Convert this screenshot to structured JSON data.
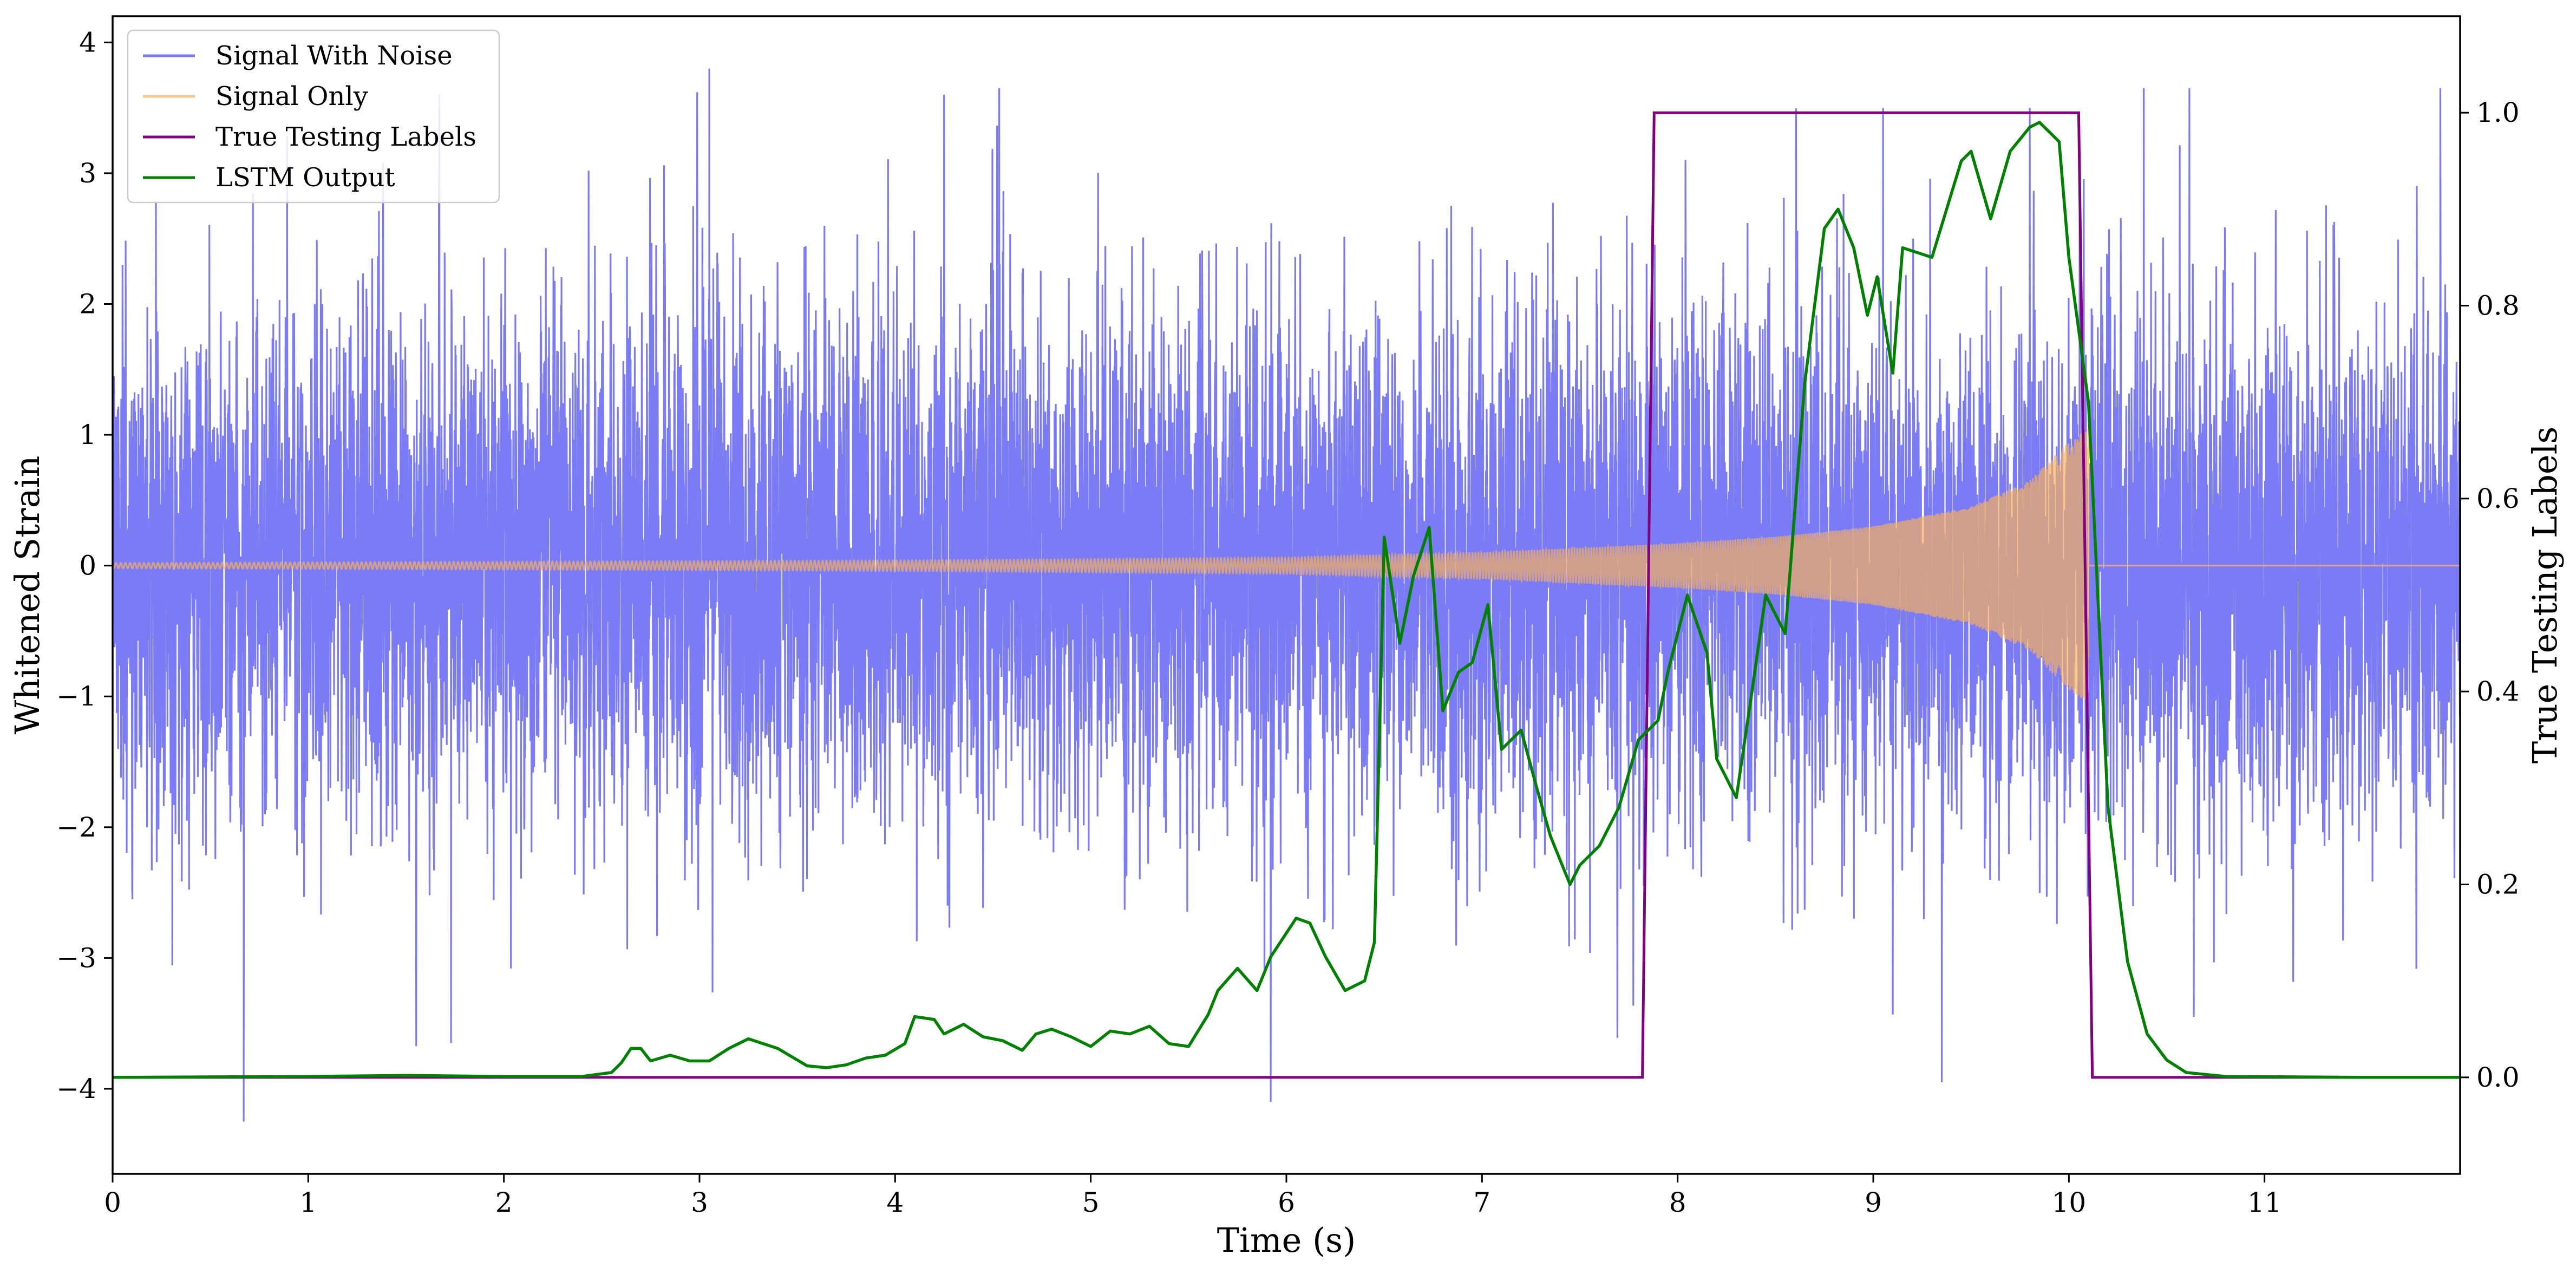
{
  "chart_data": {
    "type": "line",
    "title": "",
    "xlabel": "Time (s)",
    "ylabel": "Whitened Strain",
    "y2label": "True Testing Labels",
    "xlim": [
      0,
      12.0
    ],
    "ylim": [
      -4.65,
      4.2
    ],
    "y2lim": [
      -0.1,
      1.1
    ],
    "x_ticks": [
      0,
      1,
      2,
      3,
      4,
      5,
      6,
      7,
      8,
      9,
      10,
      11
    ],
    "y_ticks": [
      -4,
      -3,
      -2,
      -1,
      0,
      1,
      2,
      3,
      4
    ],
    "y2_ticks": [
      0.0,
      0.2,
      0.4,
      0.6,
      0.8,
      1.0
    ],
    "y_tick_labels": [
      "−4",
      "−3",
      "−2",
      "−1",
      "0",
      "1",
      "2",
      "3",
      "4"
    ],
    "y2_tick_labels": [
      "0.0",
      "0.2",
      "0.4",
      "0.6",
      "0.8",
      "1.0"
    ],
    "grid": false,
    "legend_position": "top-left",
    "legend": [
      "Signal With Noise",
      "Signal Only",
      "True Testing Labels",
      "LSTM Output"
    ],
    "colors": {
      "signal_with_noise": "#7b7bf5",
      "signal_only": "#f5b060",
      "true_labels": "#800080",
      "lstm_output": "#008000"
    },
    "series": [
      {
        "name": "Signal With Noise",
        "axis": "left",
        "description": "Gaussian-like noise of std about 1 spanning 0 to 12 s; peaks about 3.8 (x~3.05), 3.6 (x~4.25), 3.5 (x~9.05), 3.5 (x~9.8); troughs about -4.25 (x~0.67), -4.1 (x~5.92), -3.95 (x~9.35)",
        "stats": {
          "mean": 0,
          "std": 1.0,
          "max": 3.8,
          "min": -4.25
        }
      },
      {
        "name": "Signal Only",
        "axis": "left",
        "description": "Chirp oscillation around 0 whose amplitude grows from ~0.02 to ~1.05 and ends at 10.1 s; zero afterwards",
        "envelope": {
          "x": [
            0,
            2,
            4,
            6,
            7,
            8,
            8.5,
            9,
            9.5,
            9.8,
            10.0,
            10.1,
            12.0
          ],
          "amplitude": [
            0.02,
            0.03,
            0.04,
            0.06,
            0.1,
            0.17,
            0.22,
            0.3,
            0.45,
            0.65,
            0.95,
            1.05,
            0
          ]
        }
      },
      {
        "name": "True Testing Labels",
        "axis": "right",
        "x": [
          0,
          7.82,
          7.88,
          10.05,
          10.12,
          12.0
        ],
        "y": [
          0,
          0,
          1,
          1,
          0,
          0
        ]
      },
      {
        "name": "LSTM Output",
        "axis": "right",
        "x": [
          0,
          1.0,
          1.5,
          2.0,
          2.4,
          2.55,
          2.6,
          2.65,
          2.7,
          2.75,
          2.85,
          2.95,
          3.05,
          3.15,
          3.25,
          3.4,
          3.55,
          3.65,
          3.75,
          3.85,
          3.95,
          4.05,
          4.1,
          4.2,
          4.25,
          4.35,
          4.45,
          4.55,
          4.65,
          4.72,
          4.8,
          4.9,
          5.0,
          5.1,
          5.2,
          5.3,
          5.4,
          5.5,
          5.6,
          5.65,
          5.75,
          5.85,
          5.92,
          6.05,
          6.12,
          6.2,
          6.3,
          6.4,
          6.45,
          6.5,
          6.58,
          6.65,
          6.73,
          6.8,
          6.88,
          6.95,
          7.03,
          7.1,
          7.2,
          7.28,
          7.35,
          7.45,
          7.5,
          7.6,
          7.7,
          7.8,
          7.9,
          7.95,
          8.05,
          8.15,
          8.2,
          8.3,
          8.38,
          8.45,
          8.55,
          8.65,
          8.75,
          8.82,
          8.9,
          8.97,
          9.02,
          9.1,
          9.15,
          9.3,
          9.45,
          9.5,
          9.6,
          9.7,
          9.8,
          9.85,
          9.95,
          10.0,
          10.1,
          10.2,
          10.3,
          10.4,
          10.5,
          10.6,
          10.8,
          11.5,
          12.0
        ],
        "y": [
          0,
          0.001,
          0.002,
          0.001,
          0.001,
          0.005,
          0.015,
          0.03,
          0.03,
          0.017,
          0.023,
          0.017,
          0.017,
          0.03,
          0.04,
          0.03,
          0.012,
          0.01,
          0.013,
          0.02,
          0.023,
          0.035,
          0.063,
          0.06,
          0.045,
          0.055,
          0.042,
          0.038,
          0.028,
          0.045,
          0.05,
          0.042,
          0.032,
          0.048,
          0.045,
          0.053,
          0.035,
          0.032,
          0.065,
          0.09,
          0.113,
          0.09,
          0.125,
          0.165,
          0.16,
          0.125,
          0.09,
          0.1,
          0.14,
          0.56,
          0.45,
          0.52,
          0.57,
          0.38,
          0.42,
          0.43,
          0.49,
          0.34,
          0.36,
          0.3,
          0.25,
          0.2,
          0.22,
          0.24,
          0.28,
          0.35,
          0.37,
          0.42,
          0.5,
          0.44,
          0.33,
          0.29,
          0.4,
          0.5,
          0.46,
          0.72,
          0.88,
          0.9,
          0.86,
          0.79,
          0.83,
          0.73,
          0.86,
          0.85,
          0.95,
          0.96,
          0.89,
          0.96,
          0.985,
          0.99,
          0.97,
          0.85,
          0.7,
          0.28,
          0.12,
          0.045,
          0.018,
          0.005,
          0.001,
          0,
          0
        ]
      }
    ]
  }
}
